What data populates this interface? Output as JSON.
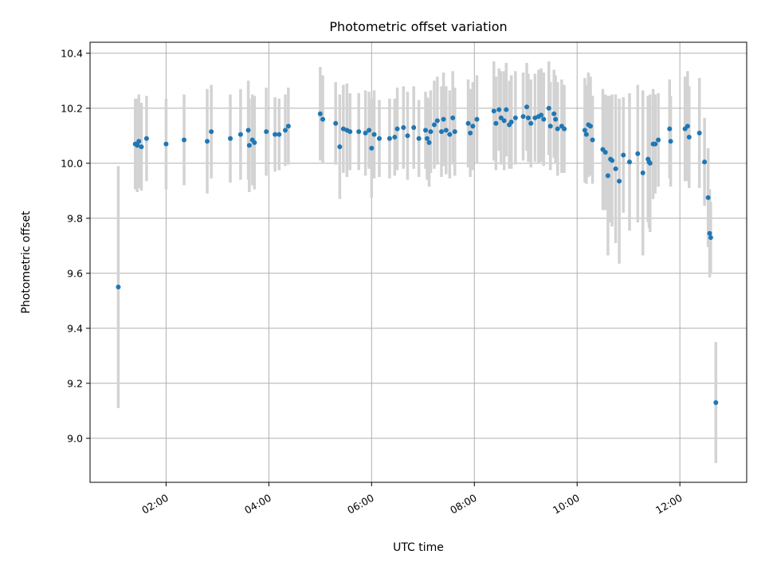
{
  "chart_data": {
    "type": "scatter",
    "title": "Photometric offset variation",
    "xlabel": "UTC time",
    "ylabel": "Photometric offset",
    "x_unit": "hours",
    "xlim": [
      0.52,
      13.3
    ],
    "ylim": [
      8.84,
      10.44
    ],
    "x_ticks": [
      {
        "value": 2,
        "label": "02:00"
      },
      {
        "value": 4,
        "label": "04:00"
      },
      {
        "value": 6,
        "label": "06:00"
      },
      {
        "value": 8,
        "label": "08:00"
      },
      {
        "value": 10,
        "label": "10:00"
      },
      {
        "value": 12,
        "label": "12:00"
      }
    ],
    "y_ticks": [
      {
        "value": 9.0,
        "label": "9.0"
      },
      {
        "value": 9.2,
        "label": "9.2"
      },
      {
        "value": 9.4,
        "label": "9.4"
      },
      {
        "value": 9.6,
        "label": "9.6"
      },
      {
        "value": 9.8,
        "label": "9.8"
      },
      {
        "value": 10.0,
        "label": "10.0"
      },
      {
        "value": 10.2,
        "label": "10.2"
      },
      {
        "value": 10.4,
        "label": "10.4"
      }
    ],
    "grid": true,
    "colors": {
      "marker": "#1f77b4",
      "errorbar": "#d3d3d3",
      "grid": "#b0b0b0"
    },
    "points": [
      [
        1.07,
        9.55,
        0.44
      ],
      [
        1.4,
        10.07,
        0.165
      ],
      [
        1.44,
        10.065,
        0.17
      ],
      [
        1.47,
        10.08,
        0.17
      ],
      [
        1.52,
        10.06,
        0.16
      ],
      [
        1.62,
        10.09,
        0.155
      ],
      [
        2.0,
        10.07,
        0.165
      ],
      [
        2.35,
        10.085,
        0.165
      ],
      [
        2.8,
        10.08,
        0.19
      ],
      [
        2.88,
        10.115,
        0.17
      ],
      [
        3.25,
        10.09,
        0.16
      ],
      [
        3.45,
        10.105,
        0.165
      ],
      [
        3.6,
        10.12,
        0.18
      ],
      [
        3.62,
        10.065,
        0.17
      ],
      [
        3.68,
        10.085,
        0.165
      ],
      [
        3.72,
        10.075,
        0.17
      ],
      [
        3.95,
        10.115,
        0.16
      ],
      [
        4.12,
        10.105,
        0.135
      ],
      [
        4.2,
        10.105,
        0.13
      ],
      [
        4.32,
        10.12,
        0.13
      ],
      [
        4.38,
        10.135,
        0.14
      ],
      [
        5.0,
        10.18,
        0.17
      ],
      [
        5.05,
        10.16,
        0.16
      ],
      [
        5.3,
        10.145,
        0.15
      ],
      [
        5.38,
        10.06,
        0.19
      ],
      [
        5.45,
        10.125,
        0.16
      ],
      [
        5.52,
        10.12,
        0.17
      ],
      [
        5.58,
        10.115,
        0.14
      ],
      [
        5.75,
        10.115,
        0.14
      ],
      [
        5.88,
        10.11,
        0.155
      ],
      [
        5.95,
        10.12,
        0.14
      ],
      [
        6.0,
        10.055,
        0.18
      ],
      [
        6.05,
        10.105,
        0.16
      ],
      [
        6.15,
        10.09,
        0.14
      ],
      [
        6.35,
        10.09,
        0.145
      ],
      [
        6.45,
        10.095,
        0.14
      ],
      [
        6.5,
        10.125,
        0.15
      ],
      [
        6.62,
        10.13,
        0.15
      ],
      [
        6.7,
        10.1,
        0.16
      ],
      [
        6.82,
        10.13,
        0.15
      ],
      [
        6.92,
        10.09,
        0.14
      ],
      [
        7.05,
        10.12,
        0.14
      ],
      [
        7.08,
        10.09,
        0.15
      ],
      [
        7.12,
        10.075,
        0.16
      ],
      [
        7.15,
        10.115,
        0.15
      ],
      [
        7.22,
        10.14,
        0.16
      ],
      [
        7.28,
        10.155,
        0.16
      ],
      [
        7.36,
        10.115,
        0.165
      ],
      [
        7.4,
        10.16,
        0.17
      ],
      [
        7.45,
        10.12,
        0.16
      ],
      [
        7.52,
        10.105,
        0.16
      ],
      [
        7.58,
        10.165,
        0.17
      ],
      [
        7.62,
        10.115,
        0.16
      ],
      [
        7.88,
        10.145,
        0.16
      ],
      [
        7.92,
        10.11,
        0.16
      ],
      [
        7.97,
        10.135,
        0.16
      ],
      [
        8.05,
        10.16,
        0.16
      ],
      [
        8.38,
        10.19,
        0.18
      ],
      [
        8.42,
        10.145,
        0.17
      ],
      [
        8.48,
        10.195,
        0.15
      ],
      [
        8.52,
        10.165,
        0.17
      ],
      [
        8.58,
        10.155,
        0.18
      ],
      [
        8.62,
        10.195,
        0.17
      ],
      [
        8.68,
        10.14,
        0.16
      ],
      [
        8.72,
        10.15,
        0.17
      ],
      [
        8.8,
        10.165,
        0.17
      ],
      [
        8.95,
        10.17,
        0.16
      ],
      [
        9.02,
        10.205,
        0.16
      ],
      [
        9.05,
        10.165,
        0.16
      ],
      [
        9.1,
        10.145,
        0.16
      ],
      [
        9.18,
        10.165,
        0.16
      ],
      [
        9.25,
        10.17,
        0.17
      ],
      [
        9.3,
        10.175,
        0.17
      ],
      [
        9.35,
        10.16,
        0.17
      ],
      [
        9.45,
        10.2,
        0.17
      ],
      [
        9.48,
        10.135,
        0.16
      ],
      [
        9.55,
        10.18,
        0.16
      ],
      [
        9.58,
        10.16,
        0.16
      ],
      [
        9.62,
        10.125,
        0.17
      ],
      [
        9.7,
        10.135,
        0.17
      ],
      [
        9.75,
        10.125,
        0.16
      ],
      [
        10.15,
        10.12,
        0.19
      ],
      [
        10.18,
        10.105,
        0.18
      ],
      [
        10.22,
        10.14,
        0.19
      ],
      [
        10.26,
        10.135,
        0.18
      ],
      [
        10.3,
        10.085,
        0.16
      ],
      [
        10.5,
        10.05,
        0.22
      ],
      [
        10.55,
        10.04,
        0.21
      ],
      [
        10.6,
        9.955,
        0.29
      ],
      [
        10.65,
        10.015,
        0.23
      ],
      [
        10.68,
        10.01,
        0.24
      ],
      [
        10.75,
        9.98,
        0.27
      ],
      [
        10.82,
        9.935,
        0.3
      ],
      [
        10.9,
        10.03,
        0.21
      ],
      [
        11.02,
        10.005,
        0.25
      ],
      [
        11.18,
        10.035,
        0.25
      ],
      [
        11.28,
        9.965,
        0.3
      ],
      [
        11.38,
        10.015,
        0.23
      ],
      [
        11.4,
        10.005,
        0.24
      ],
      [
        11.42,
        10.0,
        0.25
      ],
      [
        11.48,
        10.07,
        0.2
      ],
      [
        11.52,
        10.07,
        0.18
      ],
      [
        11.58,
        10.085,
        0.17
      ],
      [
        11.8,
        10.125,
        0.18
      ],
      [
        11.82,
        10.08,
        0.165
      ],
      [
        12.1,
        10.125,
        0.19
      ],
      [
        12.15,
        10.135,
        0.2
      ],
      [
        12.18,
        10.095,
        0.185
      ],
      [
        12.38,
        10.11,
        0.2
      ],
      [
        12.48,
        10.005,
        0.16
      ],
      [
        12.55,
        9.875,
        0.18
      ],
      [
        12.58,
        9.745,
        0.16
      ],
      [
        12.6,
        9.73,
        0.13
      ],
      [
        12.7,
        9.13,
        0.22
      ]
    ]
  }
}
